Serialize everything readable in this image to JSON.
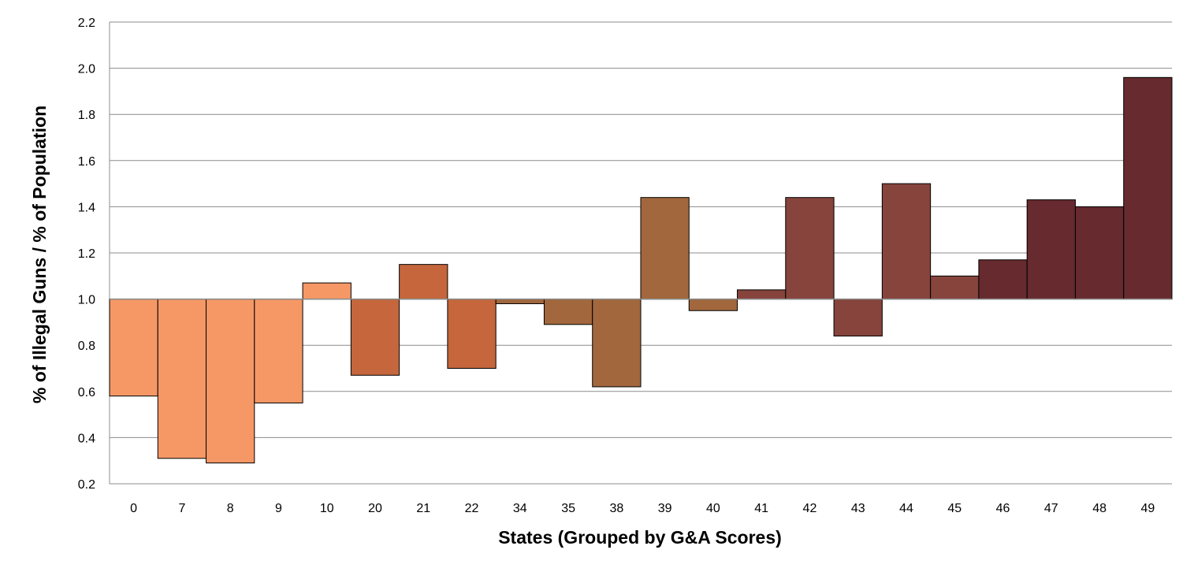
{
  "chart_data": {
    "type": "bar",
    "title": "",
    "xlabel": "States (Grouped by G&A Scores)",
    "ylabel": "% of Illegal Guns / % of Population",
    "baseline": 1.0,
    "ylim": [
      0.2,
      2.2
    ],
    "yticks": [
      "0.2",
      "0.4",
      "0.6",
      "0.8",
      "1.0",
      "1.2",
      "1.4",
      "1.6",
      "1.8",
      "2.0",
      "2.2"
    ],
    "ytick_values": [
      0.2,
      0.4,
      0.6,
      0.8,
      1.0,
      1.2,
      1.4,
      1.6,
      1.8,
      2.0,
      2.2
    ],
    "grid": true,
    "legend": "none",
    "categories": [
      "0",
      "7",
      "8",
      "9",
      "10",
      "20",
      "21",
      "22",
      "34",
      "35",
      "38",
      "39",
      "40",
      "41",
      "42",
      "43",
      "44",
      "45",
      "46",
      "47",
      "48",
      "49"
    ],
    "values": [
      0.58,
      0.31,
      0.29,
      0.55,
      1.07,
      0.67,
      1.15,
      0.7,
      0.98,
      0.89,
      0.62,
      1.44,
      0.95,
      1.04,
      1.44,
      0.84,
      1.5,
      1.1,
      1.17,
      1.43,
      1.4,
      1.96
    ],
    "colors": [
      "#F59866",
      "#F59866",
      "#F59866",
      "#F59866",
      "#F59866",
      "#C5663C",
      "#C5663C",
      "#C5663C",
      "#A2673C",
      "#A2673C",
      "#A2673C",
      "#A2673C",
      "#A2673C",
      "#86443C",
      "#86443C",
      "#86443C",
      "#86443C",
      "#86443C",
      "#662A2F",
      "#662A2F",
      "#662A2F",
      "#662A2F"
    ],
    "gridline_color": "#8C8C8C",
    "bar_outline_color": "#000000"
  }
}
